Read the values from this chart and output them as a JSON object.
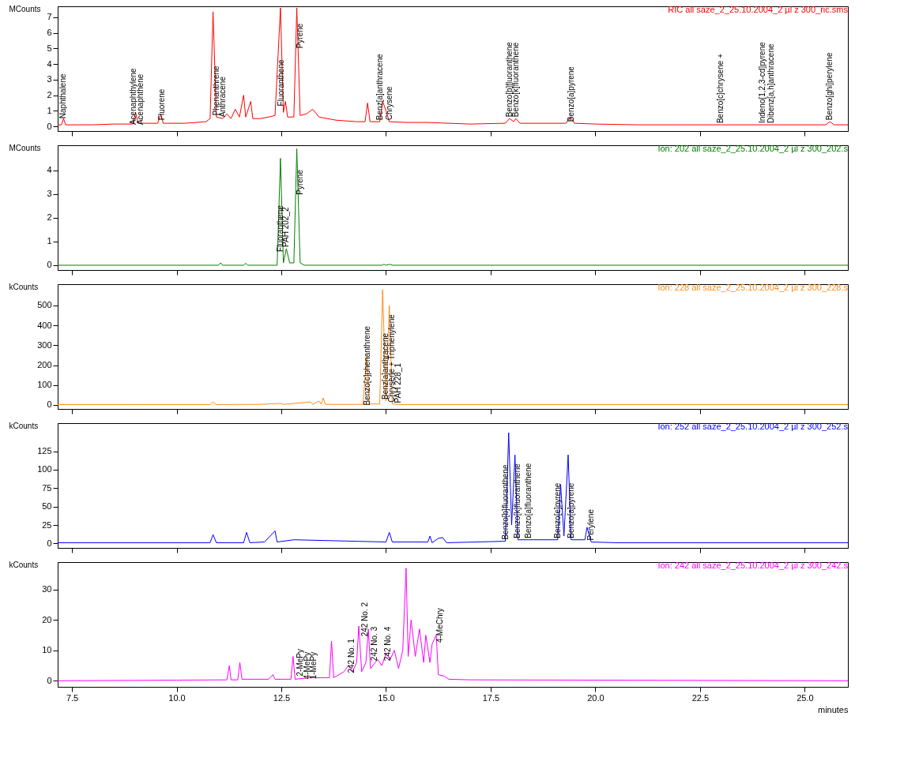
{
  "chart_data": [
    {
      "type": "line",
      "title": "RIC all saze_2_25.10.2004_2 µl z 300_ric.sms",
      "ylabel": "MCounts",
      "grid": false,
      "tick_labels": "y",
      "xlim": [
        7.16,
        26.03
      ],
      "ylim": [
        -0.3,
        7.7
      ],
      "yticks": [
        0,
        1,
        2,
        3,
        4,
        5,
        6,
        7
      ],
      "xticks": [
        {
          "value": 7.5,
          "label": null
        },
        {
          "value": 10,
          "label": null
        },
        {
          "value": 12.5,
          "label": null
        },
        {
          "value": 15,
          "label": null
        },
        {
          "value": 17.5,
          "label": null
        },
        {
          "value": 20,
          "label": null
        },
        {
          "value": 22.5,
          "label": null
        },
        {
          "value": 25,
          "label": null
        }
      ],
      "x": [
        7.16,
        7.25,
        7.3,
        7.35,
        8.0,
        8.5,
        8.95,
        9.02,
        9.08,
        9.55,
        9.62,
        9.68,
        10.2,
        10.7,
        10.8,
        10.87,
        10.95,
        11.1,
        11.2,
        11.3,
        11.4,
        11.5,
        11.6,
        11.65,
        11.77,
        11.82,
        12.0,
        12.2,
        12.35,
        12.48,
        12.55,
        12.6,
        12.65,
        12.8,
        12.87,
        12.95,
        13.1,
        13.25,
        13.4,
        13.8,
        14.3,
        14.5,
        14.56,
        14.62,
        14.85,
        14.92,
        15.0,
        15.08,
        15.5,
        16.0,
        17.0,
        17.85,
        17.95,
        18.05,
        18.1,
        18.2,
        19.3,
        19.4,
        19.5,
        20.0,
        21.0,
        22.0,
        23.0,
        24.0,
        24.2,
        25.5,
        25.6,
        25.7,
        26.03
      ],
      "series": [
        {
          "color": "#ff0000",
          "values": [
            0.1,
            0.1,
            0.5,
            0.1,
            0.1,
            0.15,
            0.15,
            0.9,
            0.2,
            0.2,
            0.8,
            0.2,
            0.2,
            0.3,
            0.5,
            7.35,
            0.6,
            0.5,
            0.8,
            0.5,
            1.1,
            0.6,
            2.0,
            0.6,
            1.6,
            0.5,
            0.5,
            0.6,
            0.7,
            7.6,
            0.9,
            1.6,
            0.6,
            0.6,
            7.6,
            0.7,
            0.8,
            1.1,
            0.6,
            0.4,
            0.3,
            0.3,
            1.5,
            0.3,
            0.3,
            1.6,
            1.0,
            0.3,
            0.25,
            0.25,
            0.15,
            0.2,
            0.5,
            0.3,
            0.5,
            0.2,
            0.2,
            0.6,
            0.2,
            0.15,
            0.1,
            0.1,
            0.1,
            0.1,
            0.1,
            0.1,
            0.3,
            0.1,
            0.1
          ]
        }
      ],
      "annotations": [
        {
          "text": "Naphthalene",
          "x": 7.3,
          "y": 0.4
        },
        {
          "text": "Acenaphthylene",
          "x": 8.97,
          "y": 0
        },
        {
          "text": "Acenaphthene",
          "x": 9.14,
          "y": 0
        },
        {
          "text": "Fluorene",
          "x": 9.66,
          "y": 0.3
        },
        {
          "text": "Phenanthrene",
          "x": 10.95,
          "y": 0.6
        },
        {
          "text": "Anthracene",
          "x": 11.1,
          "y": 0.5
        },
        {
          "text": "Fluoranthene",
          "x": 12.5,
          "y": 1.2
        },
        {
          "text": "Pyrene",
          "x": 12.95,
          "y": 4.9
        },
        {
          "text": "Benz[a]anthracene",
          "x": 14.85,
          "y": 0.3
        },
        {
          "text": "Chrysene",
          "x": 15.08,
          "y": 0.3
        },
        {
          "text": "Benzo[b]fluoranthene",
          "x": 17.95,
          "y": 0.5
        },
        {
          "text": "Benzo[k]fluoranthene",
          "x": 18.1,
          "y": 0.5
        },
        {
          "text": "Benzo[a]pyrene",
          "x": 19.42,
          "y": 0.2
        },
        {
          "text": "Benzo[c]chrysene +",
          "x": 23.0,
          "y": 0.1
        },
        {
          "text": "Indeno[1,2,3-cd]pyrene",
          "x": 24.0,
          "y": 0.1
        },
        {
          "text": "Dibenz[a,h]anthracene",
          "x": 24.2,
          "y": 0.1
        },
        {
          "text": "Benzo[ghi]perylene",
          "x": 25.6,
          "y": 0.3
        }
      ]
    },
    {
      "type": "line",
      "title": "Ion: 202 all saze_2_25.10.2004_2 µl z 300_202.s",
      "ylabel": "MCounts",
      "grid": false,
      "tick_labels": "y",
      "xlim": [
        7.16,
        26.03
      ],
      "ylim": [
        -0.2,
        5.05
      ],
      "yticks": [
        0,
        1,
        2,
        3,
        4
      ],
      "xticks": [
        {
          "value": 7.5,
          "label": null
        },
        {
          "value": 10,
          "label": null
        },
        {
          "value": 12.5,
          "label": null
        },
        {
          "value": 15,
          "label": null
        },
        {
          "value": 17.5,
          "label": null
        },
        {
          "value": 20,
          "label": null
        },
        {
          "value": 22.5,
          "label": null
        },
        {
          "value": 25,
          "label": null
        }
      ],
      "x": [
        7.16,
        11.0,
        11.05,
        11.1,
        11.6,
        11.65,
        11.7,
        12.4,
        12.48,
        12.55,
        12.62,
        12.7,
        12.8,
        12.87,
        12.95,
        13.05,
        14.9,
        14.95,
        15.0,
        15.1,
        15.15,
        26.03
      ],
      "series": [
        {
          "color": "#008000",
          "values": [
            0,
            0,
            0.1,
            0,
            0,
            0.08,
            0,
            0,
            4.5,
            0.1,
            0.7,
            0.1,
            0.1,
            4.9,
            0.1,
            0,
            0,
            0.04,
            0,
            0.04,
            0,
            0
          ]
        }
      ],
      "annotations": [
        {
          "text": "Fluoranthene",
          "x": 12.48,
          "y": 0.5
        },
        {
          "text": "PAH 202_2",
          "x": 12.62,
          "y": 0.7
        },
        {
          "text": "Pyrene",
          "x": 12.95,
          "y": 2.9
        }
      ]
    },
    {
      "type": "line",
      "title": "Ion: 228 all saze_2_25.10.2004_2 µl z 300_228.s",
      "ylabel": "kCounts",
      "grid": false,
      "tick_labels": "y",
      "xlim": [
        7.16,
        26.03
      ],
      "ylim": [
        -20,
        607
      ],
      "yticks": [
        0,
        100,
        200,
        300,
        400,
        500
      ],
      "xticks": [
        {
          "value": 7.5,
          "label": null
        },
        {
          "value": 10,
          "label": null
        },
        {
          "value": 12.5,
          "label": null
        },
        {
          "value": 15,
          "label": null
        },
        {
          "value": 17.5,
          "label": null
        },
        {
          "value": 20,
          "label": null
        },
        {
          "value": 22.5,
          "label": null
        },
        {
          "value": 25,
          "label": null
        }
      ],
      "x": [
        7.16,
        9.0,
        10.8,
        10.87,
        10.95,
        12.0,
        12.5,
        12.55,
        13.2,
        13.25,
        13.4,
        13.45,
        13.5,
        13.55,
        14.45,
        14.54,
        14.6,
        14.85,
        14.92,
        15.0,
        15.08,
        15.15,
        15.3,
        26.03
      ],
      "series": [
        {
          "color": "#ff8c1a",
          "values": [
            2,
            2,
            2,
            15,
            2,
            3,
            8,
            3,
            15,
            3,
            20,
            5,
            35,
            3,
            3,
            250,
            5,
            5,
            580,
            20,
            500,
            5,
            2,
            2
          ]
        }
      ],
      "annotations": [
        {
          "text": "Benzo[c]phenanthrene",
          "x": 14.55,
          "y": -10
        },
        {
          "text": "Benz[a]anthracene",
          "x": 15.0,
          "y": 20
        },
        {
          "text": "Chrysene + Triphenylene",
          "x": 15.15,
          "y": 5
        },
        {
          "text": "PAH 228_1",
          "x": 15.3,
          "y": 2
        }
      ]
    },
    {
      "type": "line",
      "title": "Ion: 252 all saze_2_25.10.2004_2 µl z 300_252.s",
      "ylabel": "kCounts",
      "grid": false,
      "tick_labels": "y",
      "xlim": [
        7.16,
        26.03
      ],
      "ylim": [
        -6,
        163
      ],
      "yticks": [
        0,
        25,
        50,
        75,
        100,
        125
      ],
      "xticks": [
        {
          "value": 7.5,
          "label": null
        },
        {
          "value": 10,
          "label": null
        },
        {
          "value": 12.5,
          "label": null
        },
        {
          "value": 15,
          "label": null
        },
        {
          "value": 17.5,
          "label": null
        },
        {
          "value": 20,
          "label": null
        },
        {
          "value": 22.5,
          "label": null
        },
        {
          "value": 25,
          "label": null
        }
      ],
      "x": [
        7.16,
        10.8,
        10.87,
        10.95,
        11.6,
        11.67,
        11.75,
        12.1,
        12.35,
        12.4,
        12.8,
        15.0,
        15.08,
        15.15,
        16.0,
        16.05,
        16.1,
        16.25,
        16.35,
        16.45,
        17.85,
        17.93,
        18.0,
        18.08,
        18.15,
        18.4,
        19.1,
        19.17,
        19.25,
        19.35,
        19.42,
        19.75,
        19.8,
        19.9,
        20.5,
        26.03
      ],
      "series": [
        {
          "color": "#0000ff",
          "values": [
            1,
            1,
            12,
            1,
            1,
            15,
            1,
            2,
            17,
            2,
            5,
            2,
            15,
            2,
            2,
            10,
            1,
            7,
            8,
            1,
            3,
            150,
            25,
            120,
            5,
            5,
            5,
            80,
            10,
            120,
            5,
            5,
            22,
            2,
            1,
            1
          ]
        }
      ],
      "annotations": [
        {
          "text": "Benzo[b]fluoranthene",
          "x": 17.85,
          "y": 3
        },
        {
          "text": "Benzo[k]fluoranthene",
          "x": 18.15,
          "y": 5
        },
        {
          "text": "Benzo[a]fluoranthene",
          "x": 18.4,
          "y": 5
        },
        {
          "text": "Benzo[e]pyrene",
          "x": 19.1,
          "y": 5
        },
        {
          "text": "Benzo[a]pyrene",
          "x": 19.42,
          "y": 5
        },
        {
          "text": "Perylene",
          "x": 19.9,
          "y": 2
        }
      ]
    },
    {
      "type": "line",
      "title": "Ion: 242 all saze_2_25.10.2004_2 µl z 300_242.s",
      "ylabel": "kCounts",
      "xlabel": "minutes",
      "grid": false,
      "xlim": [
        7.16,
        26.03
      ],
      "ylim": [
        -2,
        39
      ],
      "yticks": [
        0,
        10,
        20,
        30
      ],
      "xticks": [
        {
          "value": 7.5,
          "label": "7.5"
        },
        {
          "value": 10,
          "label": "10.0"
        },
        {
          "value": 12.5,
          "label": "12.5"
        },
        {
          "value": 15,
          "label": "15.0"
        },
        {
          "value": 17.5,
          "label": "17.5"
        },
        {
          "value": 20,
          "label": "20.0"
        },
        {
          "value": 22.5,
          "label": "22.5"
        },
        {
          "value": 25,
          "label": "25.0"
        }
      ],
      "x": [
        7.16,
        10.0,
        11.2,
        11.26,
        11.3,
        11.46,
        11.51,
        11.56,
        12.2,
        12.3,
        12.35,
        12.73,
        12.78,
        12.83,
        13.2,
        13.45,
        13.65,
        13.7,
        13.75,
        14.0,
        14.1,
        14.2,
        14.3,
        14.35,
        14.42,
        14.52,
        14.58,
        14.63,
        14.8,
        14.9,
        15.0,
        15.1,
        15.2,
        15.3,
        15.4,
        15.48,
        15.53,
        15.6,
        15.7,
        15.8,
        15.9,
        15.95,
        16.05,
        16.1,
        16.2,
        16.25,
        16.4,
        16.5,
        17.0,
        26.03
      ],
      "series": [
        {
          "color": "#ff00ff",
          "values": [
            0,
            0.2,
            0.3,
            5,
            0.3,
            0.3,
            6,
            0.5,
            0.5,
            2,
            0.5,
            0.5,
            8,
            0.5,
            1,
            1,
            1,
            13,
            1,
            3,
            5,
            3,
            6,
            18,
            3,
            6,
            17,
            4,
            7,
            5,
            9,
            7,
            10,
            4,
            10,
            37,
            8,
            20,
            8,
            17,
            6,
            15,
            6,
            12,
            15,
            2,
            1.5,
            0.5,
            0.3,
            0
          ]
        }
      ],
      "annotations": [
        {
          "text": "2-MePy",
          "x": 12.95,
          "y": 1
        },
        {
          "text": "4-MePy",
          "x": 13.12,
          "y": 0
        },
        {
          "text": "1-MePy",
          "x": 13.27,
          "y": 0
        },
        {
          "text": "242 No. 1",
          "x": 14.18,
          "y": 2
        },
        {
          "text": "242 No. 2",
          "x": 14.5,
          "y": 14
        },
        {
          "text": "242 No. 3",
          "x": 14.72,
          "y": 6
        },
        {
          "text": "242 No. 4",
          "x": 15.05,
          "y": 6
        },
        {
          "text": "4-MeChry",
          "x": 16.3,
          "y": 12
        }
      ]
    }
  ]
}
